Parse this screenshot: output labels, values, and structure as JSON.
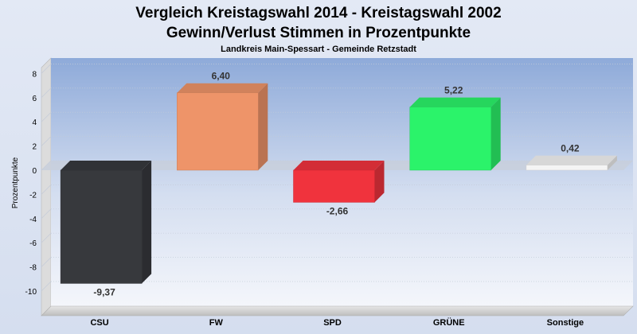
{
  "chart_data": {
    "type": "bar",
    "title": "Vergleich Kreistagswahl 2014 - Kreistagswahl 2002",
    "subtitle": "Gewinn/Verlust Stimmen in Prozentpunkte",
    "subsubtitle": "Landkreis Main-Spessart - Gemeinde Retzstadt",
    "ylabel": "Prozentpunkte",
    "xlabel": "",
    "ylim": [
      -11,
      8
    ],
    "yticks": [
      8,
      6,
      4,
      2,
      0,
      -2,
      -4,
      -6,
      -8,
      -10
    ],
    "categories": [
      "CSU",
      "FW",
      "SPD",
      "GRÜNE",
      "Sonstige"
    ],
    "values": [
      -9.37,
      6.4,
      -2.66,
      5.22,
      0.42
    ],
    "value_labels": [
      "-9,37",
      "6,40",
      "-2,66",
      "5,22",
      "0,42"
    ],
    "colors": [
      "#37393d",
      "#ee9469",
      "#f0333d",
      "#2bf36a",
      "#f4f4f4"
    ],
    "grid": true,
    "legend": "none"
  }
}
